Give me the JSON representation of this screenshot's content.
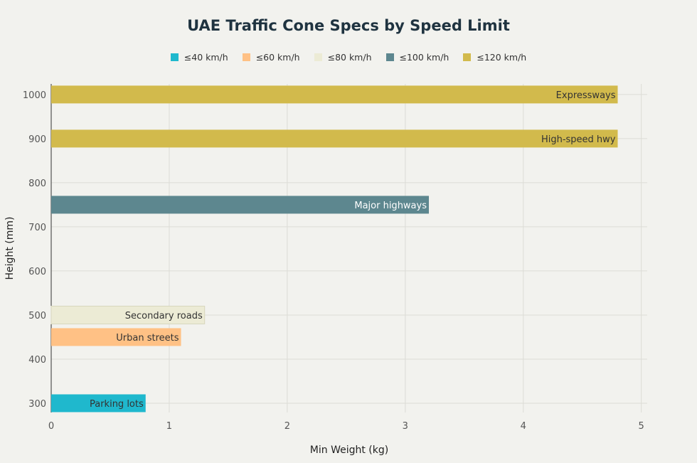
{
  "chart_data": {
    "type": "bar",
    "orientation": "horizontal",
    "title": "UAE Traffic Cone Specs by Speed Limit",
    "xlabel": "Min Weight (kg)",
    "ylabel": "Height (mm)",
    "xlim": [
      0,
      5.05
    ],
    "ylim": [
      279,
      1024
    ],
    "xticks": [
      0,
      1,
      2,
      3,
      4,
      5
    ],
    "yticks": [
      300,
      400,
      500,
      600,
      700,
      800,
      900,
      1000
    ],
    "grid": true,
    "legend_position": "top",
    "legend": [
      {
        "name": "≤40 km/h",
        "color": "#1fb8cd"
      },
      {
        "name": "≤60 km/h",
        "color": "#ffc185"
      },
      {
        "name": "≤80 km/h",
        "color": "#ecebd5"
      },
      {
        "name": "≤100 km/h",
        "color": "#5d878f"
      },
      {
        "name": "≤120 km/h",
        "color": "#d2ba4c"
      }
    ],
    "bars": [
      {
        "label": "Parking lots",
        "height_mm": 300,
        "weight_kg": 0.8,
        "series": "≤40 km/h"
      },
      {
        "label": "Urban streets",
        "height_mm": 450,
        "weight_kg": 1.1,
        "series": "≤60 km/h"
      },
      {
        "label": "Secondary roads",
        "height_mm": 500,
        "weight_kg": 1.3,
        "series": "≤80 km/h"
      },
      {
        "label": "Major highways",
        "height_mm": 750,
        "weight_kg": 3.2,
        "series": "≤100 km/h"
      },
      {
        "label": "High-speed hwy",
        "height_mm": 900,
        "weight_kg": 4.8,
        "series": "≤120 km/h"
      },
      {
        "label": "Expressways",
        "height_mm": 1000,
        "weight_kg": 4.8,
        "series": "≤120 km/h"
      }
    ]
  }
}
